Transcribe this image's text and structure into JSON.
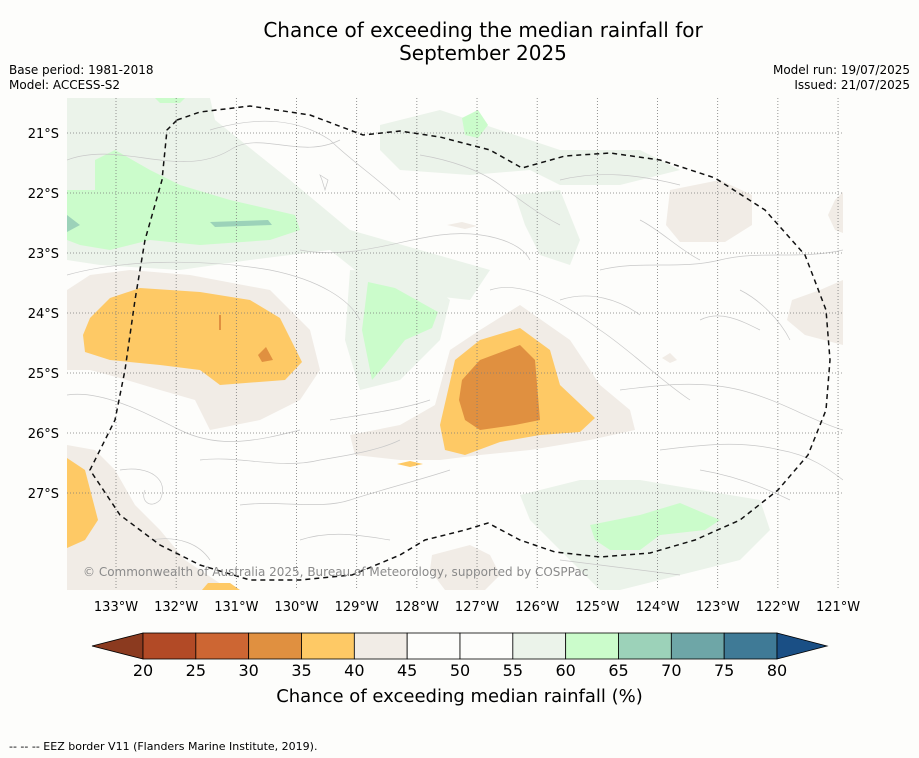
{
  "header": {
    "title_line1": "Chance of exceeding the median rainfall for",
    "title_line2": "September 2025",
    "base_period": "Base period: 1981-2018",
    "model": "Model: ACCESS-S2",
    "model_run": "Model run: 19/07/2025",
    "issued": "Issued: 21/07/2025"
  },
  "map": {
    "lon_labels": [
      "133°W",
      "132°W",
      "131°W",
      "130°W",
      "129°W",
      "128°W",
      "127°W",
      "126°W",
      "125°W",
      "124°W",
      "123°W",
      "122°W",
      "121°W"
    ],
    "lat_labels": [
      "21°S",
      "22°S",
      "23°S",
      "24°S",
      "25°S",
      "26°S",
      "27°S"
    ],
    "copyright": "© Commonwealth of Australia 2025, Bureau of Meteorology, supported by COSPPac"
  },
  "colorbar": {
    "ticks": [
      "20",
      "25",
      "30",
      "35",
      "40",
      "45",
      "50",
      "55",
      "60",
      "65",
      "70",
      "75",
      "80"
    ],
    "colors": [
      "#b24a26",
      "#cd6633",
      "#e09040",
      "#fec965",
      "#f1ece6",
      "#fdfdfb",
      "#fdfdfb",
      "#ebf3ea",
      "#cbfccb",
      "#9cd2b9",
      "#6ea6a7",
      "#3f7a96"
    ],
    "under_color": "#8b3a1f",
    "over_color": "#1a4f85",
    "label": "Chance of exceeding median rainfall (%)"
  },
  "footnote": "--  --  -- EEZ border V11 (Flanders Marine Institute, 2019)."
}
